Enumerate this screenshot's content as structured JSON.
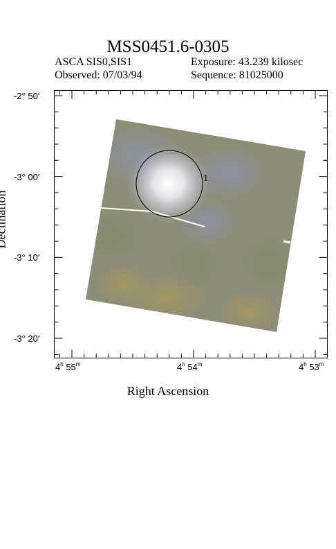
{
  "header": {
    "title": "MSS0451.6-0305",
    "instrument": "ASCA SIS0,SIS1",
    "exposure": "Exposure: 43.239 kilosec",
    "observed": "Observed: 07/03/94",
    "sequence": "Sequence: 81025000"
  },
  "axes": {
    "xlabel": "Right Ascension",
    "ylabel": "Declination",
    "dec_ticks": [
      {
        "deg": "-2°",
        "min": "50'"
      },
      {
        "deg": "-3°",
        "min": "00'"
      },
      {
        "deg": "-3°",
        "min": "10'"
      },
      {
        "deg": "-3°",
        "min": "20'"
      }
    ],
    "ra_ticks": [
      {
        "h": "4",
        "hu": "h",
        "m": "55",
        "mu": "m"
      },
      {
        "h": "4",
        "hu": "h",
        "m": "54",
        "mu": "m"
      },
      {
        "h": "4",
        "hu": "h",
        "m": "53",
        "mu": "m"
      }
    ]
  },
  "source": {
    "label": "1"
  },
  "colors": {
    "image_base": "#8d8c77",
    "source_glow": "#f4f4f8",
    "frame": "#000000"
  }
}
